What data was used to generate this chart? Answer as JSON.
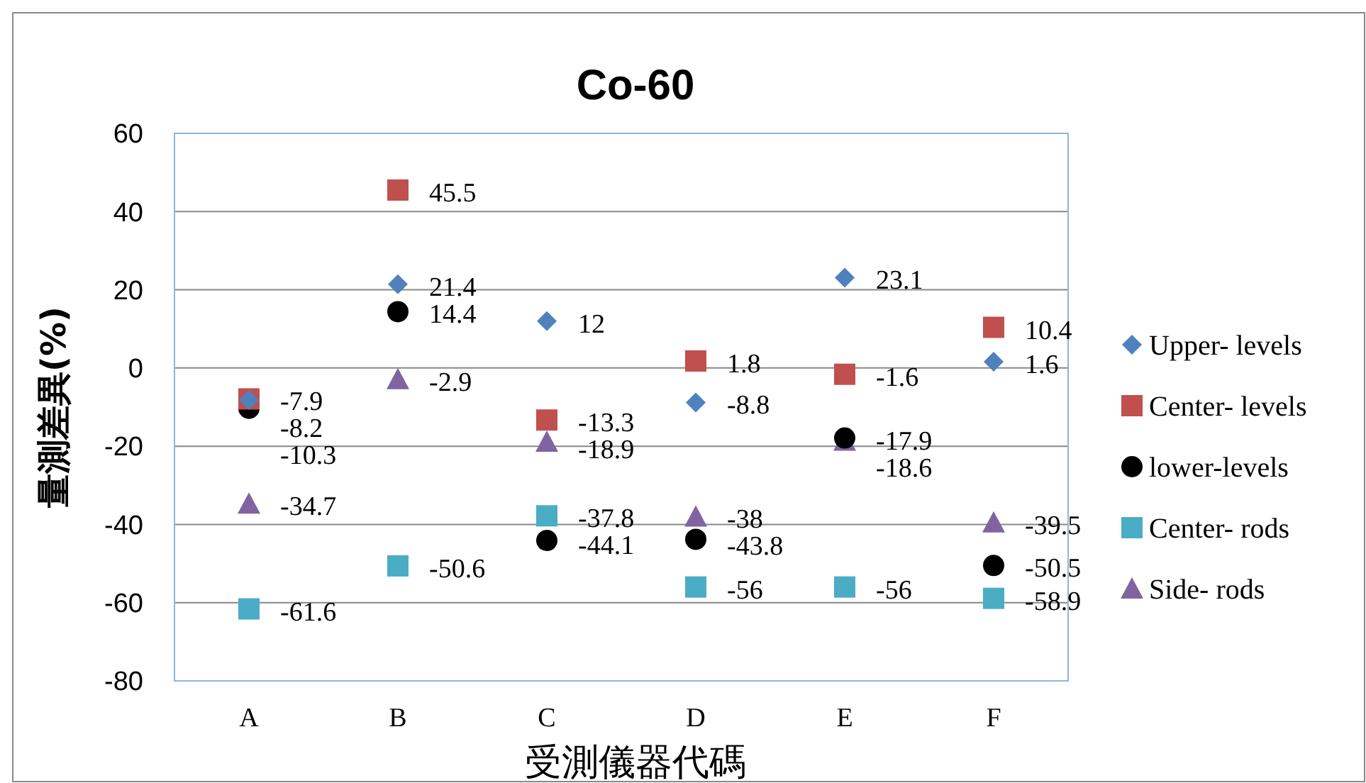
{
  "chart_data": {
    "type": "scatter",
    "title": "Co-60",
    "xlabel": "受測儀器代碼",
    "ylabel": "量測差異(%)",
    "categories": [
      "A",
      "B",
      "C",
      "D",
      "E",
      "F"
    ],
    "series": [
      {
        "name": "Upper- levels",
        "color": "#4f81bd",
        "marker": "diamond",
        "values": [
          -8.2,
          21.4,
          12,
          -8.8,
          23.1,
          1.6
        ]
      },
      {
        "name": "Center- levels",
        "color": "#c0504d",
        "marker": "square",
        "values": [
          -7.9,
          45.5,
          -13.3,
          1.8,
          -1.6,
          10.4
        ]
      },
      {
        "name": "lower-levels",
        "color": "#000000",
        "marker": "circle",
        "values": [
          -10.3,
          14.4,
          -44.1,
          -43.8,
          -17.9,
          -50.5
        ]
      },
      {
        "name": "Center- rods",
        "color": "#4bacc6",
        "marker": "square",
        "values": [
          -61.6,
          -50.6,
          -37.8,
          -56,
          -56,
          -58.9
        ]
      },
      {
        "name": "Side- rods",
        "color": "#8064a2",
        "marker": "triangle",
        "values": [
          -34.7,
          -2.9,
          -18.9,
          -38,
          -18.6,
          -39.5
        ]
      }
    ],
    "ylim": [
      -80,
      60
    ],
    "yticks": [
      -80,
      -60,
      -40,
      -20,
      0,
      20,
      40,
      60
    ],
    "grid": "y",
    "legend": "right",
    "data_labels": true
  }
}
